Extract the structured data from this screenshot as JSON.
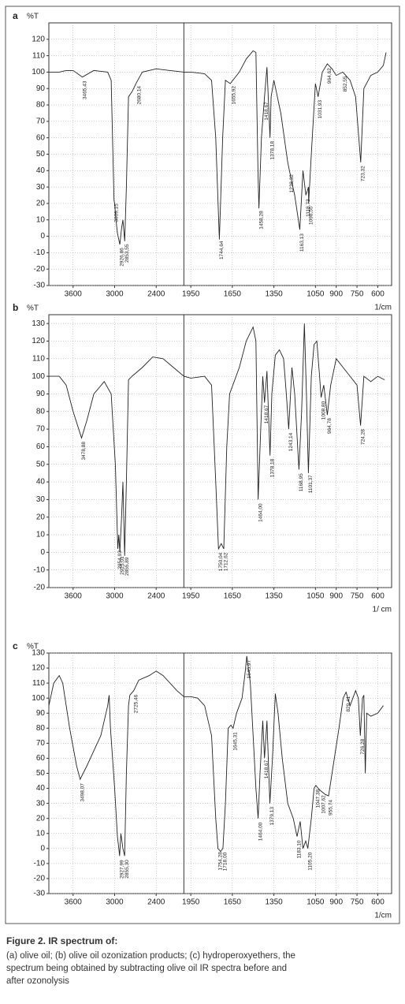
{
  "chart_data": [
    {
      "type": "line",
      "panel": "a",
      "ylabel": "%T",
      "xlabel": "1/cm",
      "xlim": [
        3950,
        500
      ],
      "x_break": 2000,
      "x_break_ratio": 2,
      "xticks": [
        3600,
        3000,
        2400,
        1950,
        1650,
        1350,
        1050,
        900,
        750,
        600
      ],
      "ylim": [
        -30,
        130
      ],
      "yticks": [
        -30,
        -20,
        -10,
        0,
        10,
        20,
        30,
        40,
        50,
        60,
        70,
        80,
        90,
        100,
        110,
        120
      ],
      "grid": true,
      "x": [
        3950,
        3800,
        3700,
        3600,
        3465,
        3300,
        3100,
        3050,
        3009,
        3000,
        2980,
        2960,
        2925,
        2900,
        2880,
        2854,
        2830,
        2800,
        2750,
        2680,
        2600,
        2400,
        2200,
        2000,
        1950,
        1850,
        1800,
        1770,
        1744,
        1720,
        1700,
        1665,
        1600,
        1550,
        1500,
        1480,
        1465,
        1458,
        1440,
        1418,
        1400,
        1378,
        1370,
        1350,
        1300,
        1250,
        1238,
        1200,
        1163,
        1140,
        1119,
        1100,
        1099,
        1080,
        1050,
        1031,
        1000,
        964,
        930,
        900,
        852,
        800,
        760,
        723,
        700,
        650,
        600,
        560,
        540
      ],
      "series": [
        {
          "color": "#222222",
          "values": [
            100,
            100,
            101,
            101,
            97,
            101,
            100,
            95,
            22,
            20,
            10,
            2,
            -5,
            5,
            10,
            -3,
            30,
            85,
            88,
            94,
            100,
            102,
            101,
            100,
            100,
            99,
            95,
            60,
            -2,
            60,
            95,
            93,
            100,
            108,
            113,
            112,
            40,
            17,
            60,
            85,
            103,
            60,
            85,
            95,
            75,
            45,
            40,
            25,
            4,
            40,
            25,
            30,
            20,
            50,
            93,
            85,
            100,
            105,
            102,
            98,
            100,
            95,
            85,
            45,
            90,
            98,
            100,
            104,
            112
          ]
        }
      ],
      "annotations": [
        {
          "text": "3465,43",
          "x": 3465.43
        },
        {
          "text": "3009,15",
          "x": 3009.15
        },
        {
          "text": "2926,86",
          "x": 2926.86
        },
        {
          "text": "2853,55",
          "x": 2853.55
        },
        {
          "text": "2680,14",
          "x": 2680.14
        },
        {
          "text": "1744,64",
          "x": 1744.64
        },
        {
          "text": "1655,92",
          "x": 1655.92
        },
        {
          "text": "1458,28",
          "x": 1458.28
        },
        {
          "text": "1418,67",
          "x": 1418.67
        },
        {
          "text": "1378,18",
          "x": 1378.18
        },
        {
          "text": "1238,32",
          "x": 1238.32
        },
        {
          "text": "1163,13",
          "x": 1163.13
        },
        {
          "text": "1118,73",
          "x": 1118.73
        },
        {
          "text": "1098,55",
          "x": 1098.55
        },
        {
          "text": "1031,93",
          "x": 1031.93
        },
        {
          "text": "964,62",
          "x": 964.62
        },
        {
          "text": "852,55",
          "x": 852.55
        },
        {
          "text": "723,32",
          "x": 723.32
        }
      ]
    },
    {
      "type": "line",
      "panel": "b",
      "ylabel": "%T",
      "xlabel": "1/ cm",
      "xlim": [
        3950,
        500
      ],
      "x_break": 2000,
      "x_break_ratio": 2,
      "xticks": [
        3600,
        3000,
        2400,
        1950,
        1650,
        1350,
        1050,
        900,
        750,
        600
      ],
      "ylim": [
        -20,
        135
      ],
      "yticks": [
        -20,
        -10,
        0,
        10,
        20,
        30,
        40,
        50,
        60,
        70,
        80,
        90,
        100,
        110,
        120,
        130
      ],
      "grid": true,
      "x": [
        3950,
        3800,
        3700,
        3600,
        3478,
        3400,
        3300,
        3150,
        3050,
        2990,
        2954,
        2940,
        2925,
        2900,
        2880,
        2855,
        2830,
        2800,
        2750,
        2600,
        2450,
        2300,
        2150,
        2000,
        1950,
        1850,
        1800,
        1770,
        1750,
        1730,
        1712,
        1690,
        1670,
        1600,
        1550,
        1500,
        1480,
        1464,
        1445,
        1430,
        1418,
        1400,
        1378,
        1365,
        1340,
        1310,
        1280,
        1260,
        1243,
        1220,
        1200,
        1169,
        1150,
        1130,
        1115,
        1101,
        1080,
        1060,
        1040,
        1020,
        1009,
        990,
        964,
        940,
        900,
        850,
        800,
        750,
        724,
        700,
        650,
        600,
        550
      ],
      "series": [
        {
          "color": "#222222",
          "values": [
            100,
            100,
            95,
            80,
            65,
            75,
            90,
            97,
            90,
            50,
            2,
            10,
            0,
            20,
            40,
            -2,
            40,
            98,
            100,
            105,
            111,
            110,
            105,
            100,
            99,
            100,
            95,
            40,
            2,
            5,
            2,
            60,
            90,
            105,
            120,
            128,
            120,
            30,
            70,
            100,
            85,
            103,
            55,
            90,
            112,
            115,
            110,
            90,
            70,
            105,
            90,
            47,
            80,
            130,
            90,
            45,
            100,
            118,
            120,
            100,
            88,
            95,
            78,
            95,
            110,
            105,
            100,
            95,
            72,
            100,
            97,
            100,
            98
          ]
        }
      ],
      "annotations": [
        {
          "text": "3478,88",
          "x": 3478.88
        },
        {
          "text": "2954,93",
          "x": 2954.93
        },
        {
          "text": "2925,01",
          "x": 2925.01
        },
        {
          "text": "2855,89",
          "x": 2855.89
        },
        {
          "text": "1750,04",
          "x": 1750.04
        },
        {
          "text": "1712,62",
          "x": 1712.62
        },
        {
          "text": "1464,00",
          "x": 1464.0
        },
        {
          "text": "1418,67",
          "x": 1418.67
        },
        {
          "text": "1378,18",
          "x": 1378.18
        },
        {
          "text": "1243,14",
          "x": 1243.14
        },
        {
          "text": "1168,95",
          "x": 1168.95
        },
        {
          "text": "1101,37",
          "x": 1101.37
        },
        {
          "text": "1008,80",
          "x": 1008.8
        },
        {
          "text": "964,78",
          "x": 964.78
        },
        {
          "text": "724,28",
          "x": 724.28
        }
      ]
    },
    {
      "type": "line",
      "panel": "c",
      "ylabel": "%T",
      "xlabel": "1/cm",
      "xlim": [
        3950,
        500
      ],
      "x_break": 2000,
      "x_break_ratio": 2,
      "xticks": [
        3600,
        3000,
        2400,
        1950,
        1650,
        1350,
        1050,
        900,
        750,
        600
      ],
      "ylim": [
        -30,
        130
      ],
      "yticks": [
        -30,
        -20,
        -10,
        0,
        10,
        20,
        30,
        40,
        50,
        60,
        70,
        80,
        90,
        100,
        110,
        120,
        130
      ],
      "grid": true,
      "x": [
        3950,
        3880,
        3800,
        3750,
        3650,
        3550,
        3498,
        3400,
        3200,
        3100,
        3080,
        3060,
        3000,
        2960,
        2940,
        2928,
        2910,
        2880,
        2855,
        2830,
        2800,
        2780,
        2725,
        2650,
        2500,
        2400,
        2300,
        2100,
        2000,
        1950,
        1900,
        1850,
        1800,
        1770,
        1754,
        1735,
        1718,
        1700,
        1680,
        1660,
        1645,
        1620,
        1580,
        1560,
        1546,
        1520,
        1480,
        1464,
        1450,
        1430,
        1418,
        1400,
        1379,
        1360,
        1340,
        1320,
        1290,
        1250,
        1210,
        1183,
        1160,
        1140,
        1120,
        1105,
        1080,
        1060,
        1047,
        1030,
        1007,
        980,
        955,
        930,
        880,
        850,
        829,
        800,
        780,
        760,
        740,
        726,
        710,
        700,
        690,
        680,
        650,
        600,
        560
      ],
      "series": [
        {
          "color": "#222222",
          "values": [
            95,
            110,
            115,
            110,
            80,
            55,
            46,
            55,
            75,
            95,
            102,
            80,
            40,
            8,
            0,
            -5,
            10,
            0,
            -5,
            50,
            95,
            102,
            105,
            112,
            115,
            118,
            115,
            105,
            101,
            101,
            100,
            95,
            75,
            20,
            0,
            -2,
            0,
            30,
            80,
            82,
            80,
            90,
            100,
            115,
            128,
            110,
            40,
            20,
            50,
            85,
            60,
            85,
            30,
            60,
            103,
            90,
            60,
            30,
            20,
            8,
            18,
            0,
            5,
            0,
            20,
            40,
            42,
            40,
            38,
            36,
            35,
            50,
            80,
            100,
            104,
            95,
            100,
            105,
            100,
            75,
            100,
            102,
            50,
            90,
            88,
            90,
            95
          ]
        }
      ],
      "annotations": [
        {
          "text": "3498,07",
          "x": 3498.07
        },
        {
          "text": "2927,99",
          "x": 2927.99
        },
        {
          "text": "2855,30",
          "x": 2855.3
        },
        {
          "text": "2725,46",
          "x": 2725.46
        },
        {
          "text": "1754,28",
          "x": 1754.28
        },
        {
          "text": "1718,00",
          "x": 1718.0
        },
        {
          "text": "1645,31",
          "x": 1645.31
        },
        {
          "text": "1545,97",
          "x": 1545.97
        },
        {
          "text": "1464,00",
          "x": 1464.0
        },
        {
          "text": "1418,67",
          "x": 1418.67
        },
        {
          "text": "1379,13",
          "x": 1379.13
        },
        {
          "text": "1183,10",
          "x": 1183.1
        },
        {
          "text": "1105,20",
          "x": 1105.2
        },
        {
          "text": "1047,38",
          "x": 1047.38
        },
        {
          "text": "1007,62",
          "x": 1007.62
        },
        {
          "text": "955,74",
          "x": 955.74
        },
        {
          "text": "829,41",
          "x": 829.41
        },
        {
          "text": "726,28",
          "x": 726.28
        }
      ]
    }
  ],
  "caption": {
    "title": "Figure 2. IR spectrum of:",
    "lines": [
      "(a) olive oil; (b) olive oil ozonization products; (c) hydroperoxyethers, the",
      "spectrum being obtained by subtracting olive oil IR spectra before and",
      "after ozonolysis"
    ]
  }
}
